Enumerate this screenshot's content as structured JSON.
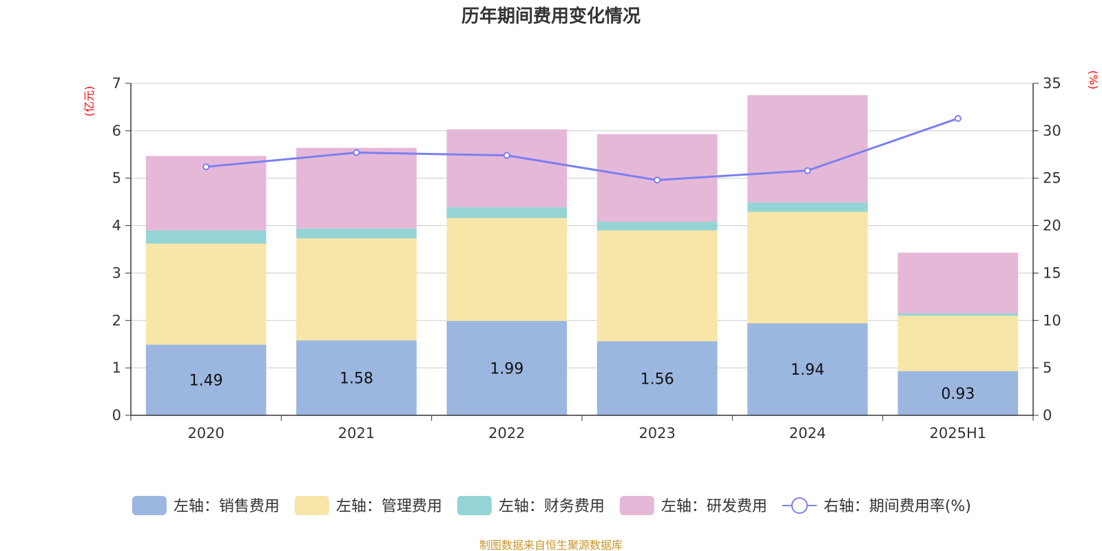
{
  "chart_data": {
    "type": "bar",
    "stacked": true,
    "title": "历年期间费用变化情况",
    "left_unit": "(亿元)",
    "right_unit": "(%)",
    "categories": [
      "2020",
      "2021",
      "2022",
      "2023",
      "2024",
      "2025H1"
    ],
    "ylim_left": [
      0,
      7
    ],
    "yticks_left": [
      0,
      1,
      2,
      3,
      4,
      5,
      6,
      7
    ],
    "ylim_right": [
      0,
      35
    ],
    "yticks_right": [
      0,
      5,
      10,
      15,
      20,
      25,
      30,
      35
    ],
    "grid": true,
    "legend_position": "bottom",
    "series": [
      {
        "name": "左轴：销售费用",
        "axis": "left",
        "kind": "bar",
        "color": "#9bb7e0",
        "values": [
          1.49,
          1.58,
          1.99,
          1.56,
          1.94,
          0.93
        ],
        "show_labels": true
      },
      {
        "name": "左轴：管理费用",
        "axis": "left",
        "kind": "bar",
        "color": "#f7e6a8",
        "values": [
          2.13,
          2.15,
          2.17,
          2.34,
          2.35,
          1.17
        ],
        "show_labels": false
      },
      {
        "name": "左轴：财务费用",
        "axis": "left",
        "kind": "bar",
        "color": "#95d4d4",
        "values": [
          0.28,
          0.21,
          0.23,
          0.18,
          0.2,
          0.05
        ],
        "show_labels": false
      },
      {
        "name": "左轴：研发费用",
        "axis": "left",
        "kind": "bar",
        "color": "#e6b8d8",
        "values": [
          1.57,
          1.7,
          1.64,
          1.85,
          2.26,
          1.28
        ],
        "show_labels": false
      },
      {
        "name": "右轴：期间费用率(%)",
        "axis": "right",
        "kind": "line",
        "color": "#7b7ff0",
        "values": [
          26.2,
          27.7,
          27.4,
          24.8,
          25.8,
          31.3
        ],
        "show_labels": false
      }
    ]
  },
  "source_note": "制图数据来自恒生聚源数据库"
}
